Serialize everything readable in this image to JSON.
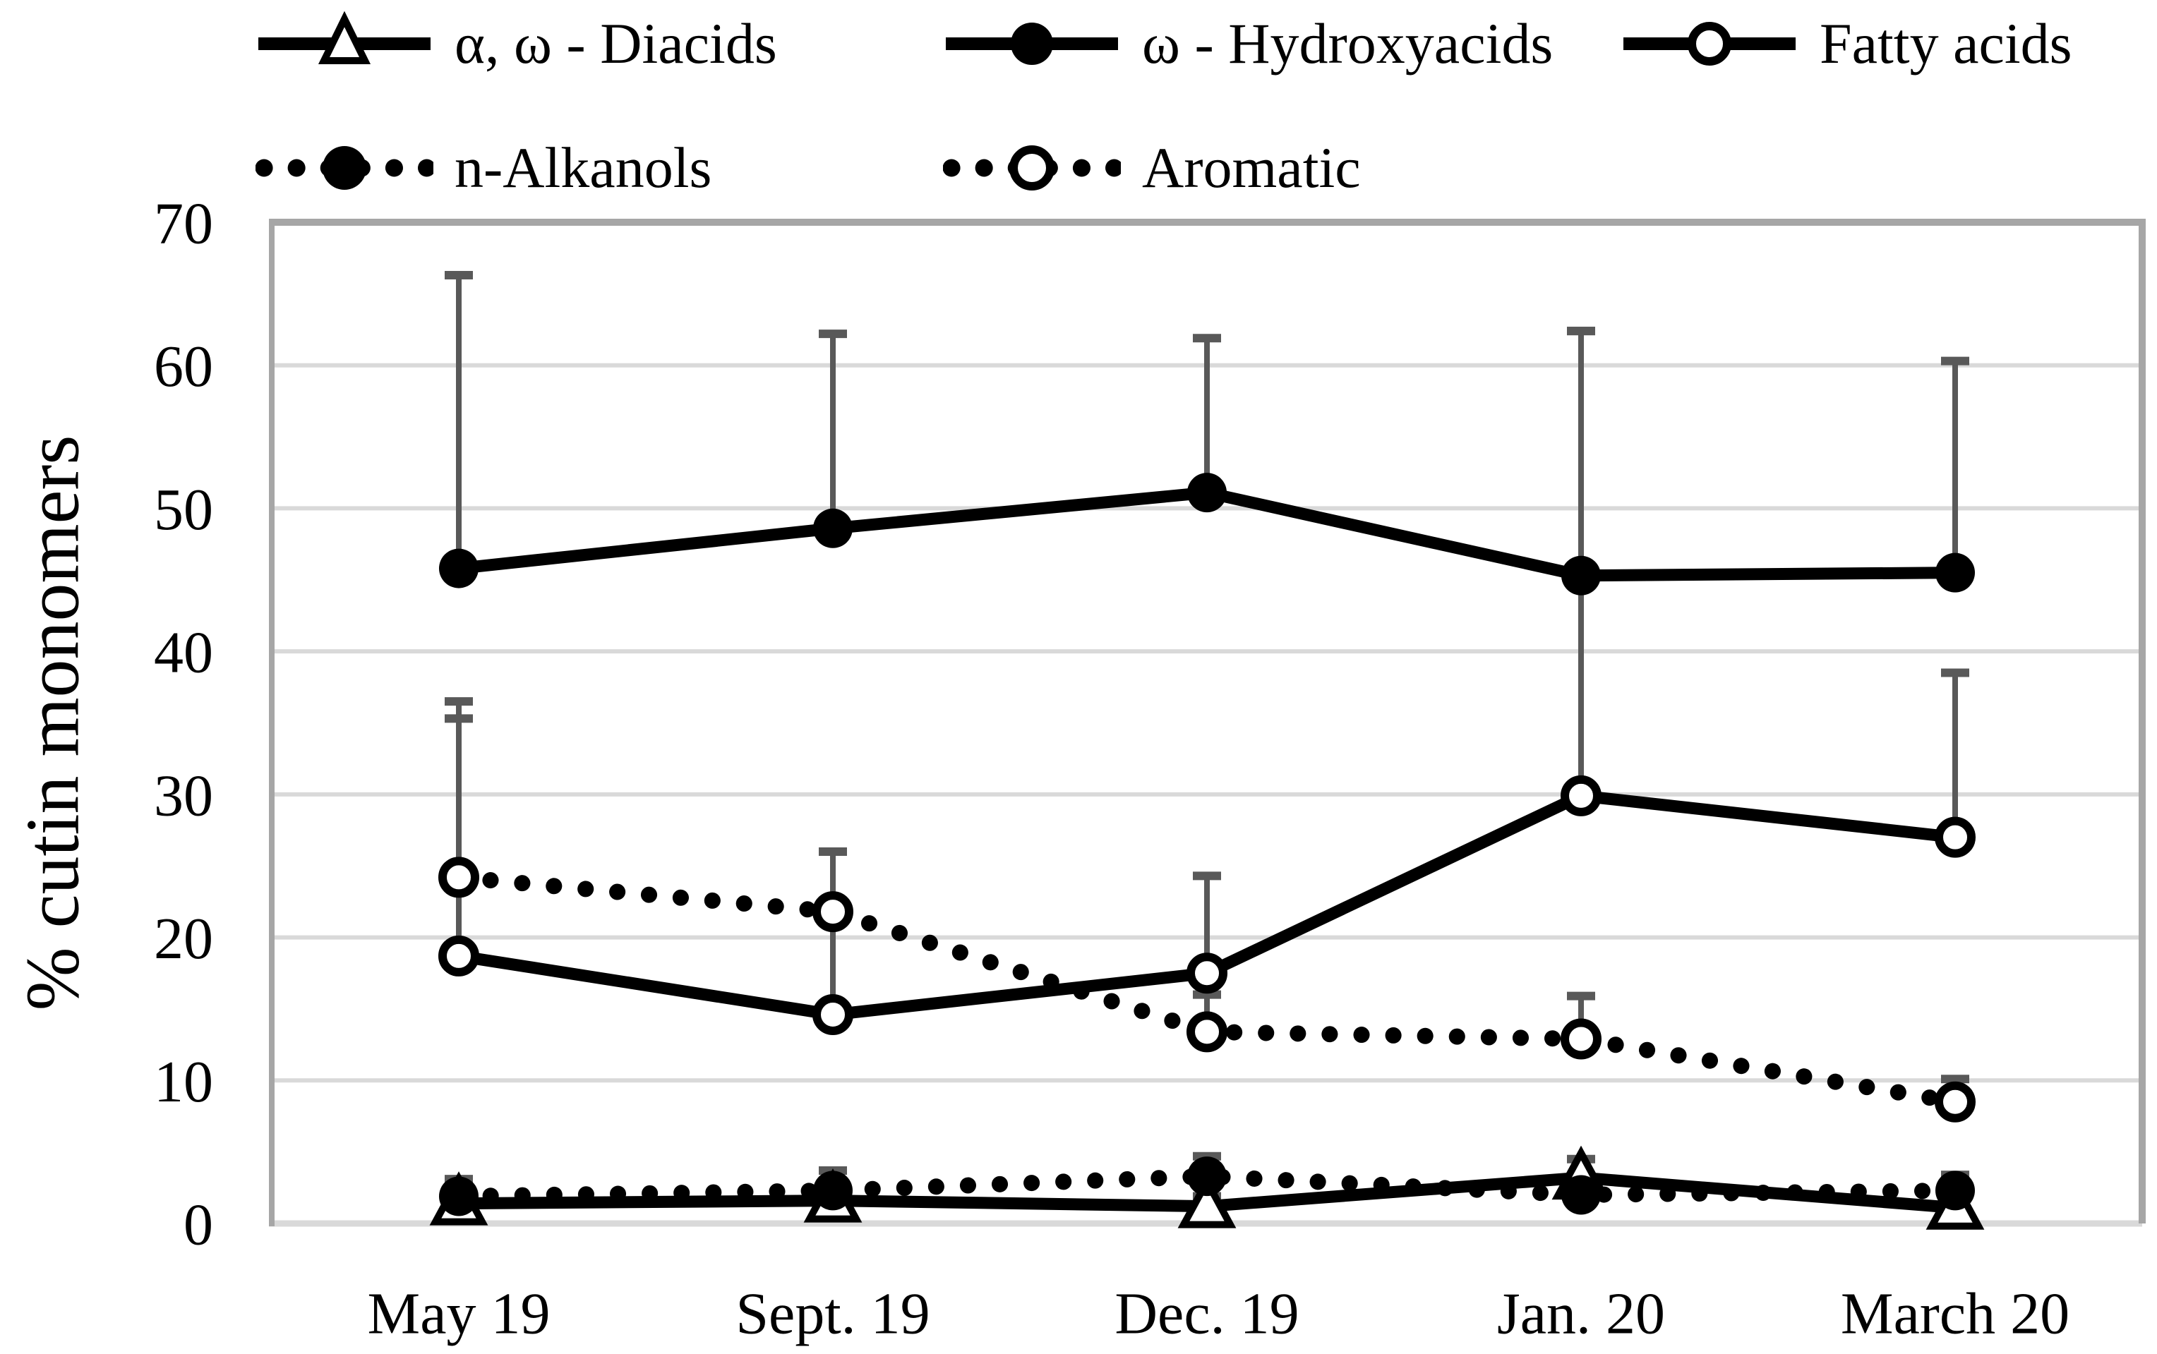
{
  "chart_data": {
    "type": "line",
    "title": "",
    "xlabel": "",
    "ylabel": "% cutin monomers",
    "ylim": [
      0,
      70
    ],
    "yticks": [
      0,
      10,
      20,
      30,
      40,
      50,
      60,
      70
    ],
    "grid": "horizontal",
    "legend_position": "top",
    "categories": [
      "May 19",
      "Sept. 19",
      "Dec. 19",
      "Jan. 20",
      "March 20"
    ],
    "series": [
      {
        "name": "α, ω - Diacids",
        "line": "solid",
        "marker": "open-triangle",
        "values": [
          1.4,
          1.6,
          1.2,
          3.2,
          1.1
        ],
        "error_top": [
          null,
          null,
          1.9,
          4.5,
          null
        ]
      },
      {
        "name": "ω - Hydroxyacids",
        "line": "solid",
        "marker": "filled-circle",
        "values": [
          45.8,
          48.6,
          51.1,
          45.3,
          45.5
        ],
        "error_top": [
          66.3,
          62.2,
          61.9,
          62.4,
          60.3
        ]
      },
      {
        "name": "Fatty acids",
        "line": "solid",
        "marker": "open-circle",
        "values": [
          18.7,
          14.6,
          17.5,
          29.9,
          27.0
        ],
        "error_top": [
          36.5,
          26.0,
          24.3,
          62.4,
          38.5
        ]
      },
      {
        "name": "n-Alkanols",
        "line": "dotted",
        "marker": "filled-circle",
        "values": [
          1.9,
          2.3,
          3.3,
          2.0,
          2.3
        ],
        "error_top": [
          3.1,
          3.7,
          4.7,
          null,
          3.4
        ]
      },
      {
        "name": "Aromatic",
        "line": "dotted",
        "marker": "open-circle",
        "values": [
          24.2,
          21.8,
          13.4,
          12.9,
          8.5
        ],
        "error_top": [
          35.3,
          26.0,
          16.0,
          15.9,
          10.1
        ]
      }
    ],
    "colors": {
      "series": "#000000",
      "grid": "#d9d9d9",
      "border": "#a6a6a6",
      "error_bar": "#595959",
      "text": "#000000",
      "background": "#ffffff"
    }
  }
}
